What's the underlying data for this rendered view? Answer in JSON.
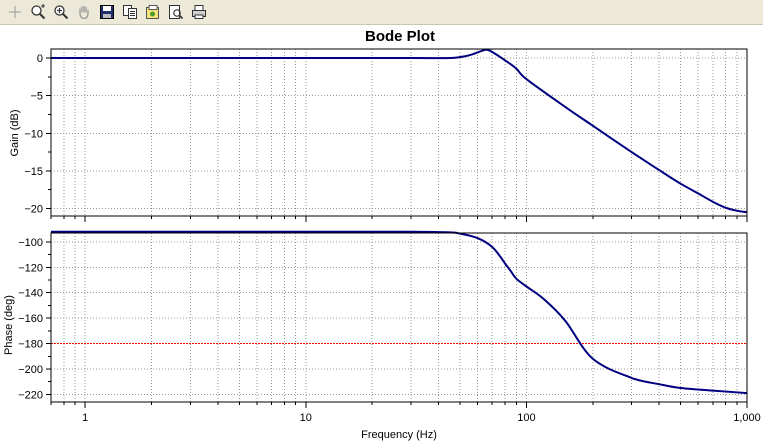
{
  "toolbar": {
    "buttons": [
      {
        "name": "crosshair-icon",
        "tooltip": ""
      },
      {
        "name": "zoom-fit-icon",
        "tooltip": ""
      },
      {
        "name": "zoom-in-icon",
        "tooltip": ""
      },
      {
        "name": "pan-hand-icon",
        "tooltip": ""
      },
      {
        "name": "save-icon",
        "tooltip": ""
      },
      {
        "name": "copy-icon",
        "tooltip": ""
      },
      {
        "name": "export-icon",
        "tooltip": ""
      },
      {
        "name": "print-preview-icon",
        "tooltip": ""
      },
      {
        "name": "print-icon",
        "tooltip": ""
      }
    ]
  },
  "colors": {
    "trace": "#000080",
    "reference": "#ff0000",
    "grid": "#9a9a9a"
  },
  "chart_data": [
    {
      "type": "line",
      "title": "Bode Plot",
      "xlabel": "",
      "ylabel": "Gain (dB)",
      "xscale": "log",
      "xlim": [
        0.7,
        1000
      ],
      "ylim": [
        -21,
        1.2
      ],
      "yticks": [
        0,
        -5,
        -10,
        -15,
        -20
      ],
      "grid": true,
      "series": [
        {
          "x": [
            0.7,
            1,
            10,
            30,
            45,
            52,
            57,
            62,
            66,
            70,
            80,
            90,
            100,
            150,
            200,
            300,
            400,
            500,
            600,
            700,
            800,
            900,
            1000
          ],
          "y": [
            0,
            0,
            0,
            0,
            0,
            0.2,
            0.5,
            0.9,
            1.1,
            0.8,
            -0.3,
            -1.4,
            -2.8,
            -6.5,
            -9,
            -12.5,
            -14.9,
            -16.7,
            -18.0,
            -19.1,
            -19.9,
            -20.3,
            -20.5
          ]
        }
      ]
    },
    {
      "type": "line",
      "xlabel": "Frequency (Hz)",
      "ylabel": "Phase (deg)",
      "xscale": "log",
      "xlim": [
        0.7,
        1000
      ],
      "ylim": [
        -226,
        -93
      ],
      "yticks": [
        -100,
        -120,
        -140,
        -160,
        -180,
        -200,
        -220
      ],
      "xticks": [
        1,
        10,
        100,
        1000
      ],
      "xtick_labels": [
        "1",
        "10",
        "100",
        "1,000"
      ],
      "grid": true,
      "reference_line_y": -180,
      "series": [
        {
          "x": [
            0.7,
            1,
            10,
            30,
            45,
            50,
            55,
            60,
            65,
            70,
            75,
            80,
            85,
            90,
            100,
            120,
            150,
            200,
            300,
            400,
            500,
            700,
            1000
          ],
          "y": [
            -92,
            -92,
            -92,
            -92,
            -92.5,
            -93.5,
            -95,
            -97,
            -100,
            -104,
            -110,
            -117,
            -123,
            -129,
            -135,
            -145,
            -162,
            -192,
            -207,
            -212,
            -215,
            -217,
            -219
          ]
        }
      ]
    }
  ]
}
